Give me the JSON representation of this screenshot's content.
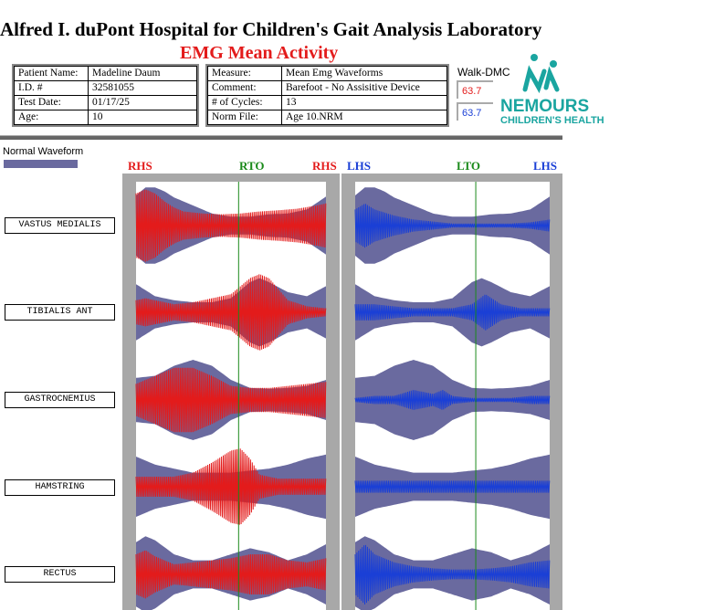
{
  "header": {
    "title": "Alfred I. duPont Hospital for Children's Gait Analysis Laboratory",
    "subtitle": "EMG Mean Activity"
  },
  "patient_info": [
    {
      "label": "Patient Name:",
      "value": "Madeline Daum"
    },
    {
      "label": "I.D. #",
      "value": "32581055"
    },
    {
      "label": "Test Date:",
      "value": "01/17/25"
    },
    {
      "label": "Age:",
      "value": "10"
    }
  ],
  "measure_info": [
    {
      "label": "Measure:",
      "value": "Mean Emg Waveforms"
    },
    {
      "label": "Comment:",
      "value": "Barefoot - No Assisitive Device"
    },
    {
      "label": "# of Cycles:",
      "value": "13"
    },
    {
      "label": "Norm File:",
      "value": "Age 10.NRM"
    }
  ],
  "walk_dmc": {
    "label": "Walk-DMC",
    "right_value": "63.7",
    "left_value": "63.7",
    "right_color": "#e31b1b",
    "left_color": "#1a3fd6"
  },
  "brand": {
    "name": "NEMOURS",
    "tagline": "CHILDREN'S HEALTH",
    "color": "#1aa5a0"
  },
  "legend": {
    "normal_waveform": "Normal Waveform",
    "normal_color": "#6a6a9f"
  },
  "events": {
    "right": [
      "RHS",
      "RTO",
      "RHS"
    ],
    "left": [
      "LHS",
      "LTO",
      "LHS"
    ],
    "right_color": "#e31b1b",
    "left_color": "#1a3fd6",
    "toe_off_color": "#1a8a1a"
  },
  "chart_data": {
    "type": "area",
    "x_range": [
      0,
      100
    ],
    "toe_off_percent": {
      "right": 54,
      "left": 62
    },
    "muscles": [
      {
        "name": "VASTUS MEDIALIS",
        "normal_envelope": [
          [
            0,
            0.75
          ],
          [
            5,
            0.95
          ],
          [
            10,
            0.95
          ],
          [
            15,
            0.85
          ],
          [
            20,
            0.7
          ],
          [
            30,
            0.5
          ],
          [
            40,
            0.3
          ],
          [
            50,
            0.22
          ],
          [
            60,
            0.22
          ],
          [
            70,
            0.28
          ],
          [
            80,
            0.3
          ],
          [
            90,
            0.4
          ],
          [
            100,
            0.72
          ]
        ],
        "right_activity": [
          [
            0,
            0.8
          ],
          [
            5,
            0.9
          ],
          [
            10,
            0.8
          ],
          [
            15,
            0.6
          ],
          [
            20,
            0.45
          ],
          [
            25,
            0.35
          ],
          [
            35,
            0.3
          ],
          [
            45,
            0.28
          ],
          [
            55,
            0.3
          ],
          [
            65,
            0.35
          ],
          [
            75,
            0.38
          ],
          [
            85,
            0.42
          ],
          [
            95,
            0.5
          ],
          [
            100,
            0.55
          ]
        ],
        "left_activity": [
          [
            0,
            0.4
          ],
          [
            5,
            0.55
          ],
          [
            10,
            0.4
          ],
          [
            20,
            0.25
          ],
          [
            30,
            0.15
          ],
          [
            40,
            0.1
          ],
          [
            50,
            0.05
          ],
          [
            60,
            0.05
          ],
          [
            70,
            0.05
          ],
          [
            80,
            0.05
          ],
          [
            90,
            0.08
          ],
          [
            100,
            0.15
          ]
        ]
      },
      {
        "name": "TIBIALIS ANT",
        "normal_envelope": [
          [
            0,
            0.7
          ],
          [
            5,
            0.55
          ],
          [
            10,
            0.4
          ],
          [
            20,
            0.3
          ],
          [
            30,
            0.25
          ],
          [
            40,
            0.25
          ],
          [
            50,
            0.35
          ],
          [
            60,
            0.75
          ],
          [
            65,
            0.85
          ],
          [
            70,
            0.75
          ],
          [
            80,
            0.5
          ],
          [
            90,
            0.4
          ],
          [
            100,
            0.65
          ]
        ],
        "right_activity": [
          [
            0,
            0.3
          ],
          [
            5,
            0.35
          ],
          [
            10,
            0.3
          ],
          [
            20,
            0.2
          ],
          [
            30,
            0.25
          ],
          [
            40,
            0.35
          ],
          [
            50,
            0.45
          ],
          [
            60,
            0.85
          ],
          [
            65,
            0.95
          ],
          [
            70,
            0.85
          ],
          [
            80,
            0.3
          ],
          [
            90,
            0.15
          ],
          [
            100,
            0.1
          ]
        ],
        "left_activity": [
          [
            0,
            0.2
          ],
          [
            10,
            0.2
          ],
          [
            20,
            0.15
          ],
          [
            30,
            0.1
          ],
          [
            40,
            0.1
          ],
          [
            50,
            0.1
          ],
          [
            60,
            0.2
          ],
          [
            67,
            0.45
          ],
          [
            75,
            0.2
          ],
          [
            85,
            0.1
          ],
          [
            100,
            0.1
          ]
        ]
      },
      {
        "name": "GASTROCNEMIUS",
        "normal_envelope": [
          [
            0,
            0.55
          ],
          [
            10,
            0.6
          ],
          [
            20,
            0.85
          ],
          [
            30,
            1.0
          ],
          [
            40,
            0.85
          ],
          [
            50,
            0.5
          ],
          [
            60,
            0.3
          ],
          [
            70,
            0.28
          ],
          [
            80,
            0.3
          ],
          [
            90,
            0.35
          ],
          [
            100,
            0.5
          ]
        ],
        "right_activity": [
          [
            0,
            0.4
          ],
          [
            10,
            0.6
          ],
          [
            20,
            0.8
          ],
          [
            30,
            0.8
          ],
          [
            40,
            0.6
          ],
          [
            50,
            0.35
          ],
          [
            60,
            0.3
          ],
          [
            70,
            0.3
          ],
          [
            80,
            0.35
          ],
          [
            90,
            0.4
          ],
          [
            100,
            0.45
          ]
        ],
        "left_activity": [
          [
            0,
            0.05
          ],
          [
            10,
            0.1
          ],
          [
            20,
            0.1
          ],
          [
            30,
            0.25
          ],
          [
            40,
            0.15
          ],
          [
            45,
            0.25
          ],
          [
            50,
            0.1
          ],
          [
            60,
            0.05
          ],
          [
            70,
            0.05
          ],
          [
            80,
            0.05
          ],
          [
            90,
            0.1
          ],
          [
            100,
            0.1
          ]
        ]
      },
      {
        "name": "HAMSTRING",
        "normal_envelope": [
          [
            0,
            0.75
          ],
          [
            10,
            0.55
          ],
          [
            20,
            0.45
          ],
          [
            30,
            0.35
          ],
          [
            40,
            0.35
          ],
          [
            50,
            0.35
          ],
          [
            60,
            0.4
          ],
          [
            70,
            0.45
          ],
          [
            80,
            0.55
          ],
          [
            90,
            0.7
          ],
          [
            100,
            0.8
          ]
        ],
        "right_activity": [
          [
            0,
            0.25
          ],
          [
            10,
            0.25
          ],
          [
            20,
            0.25
          ],
          [
            30,
            0.35
          ],
          [
            40,
            0.6
          ],
          [
            50,
            0.9
          ],
          [
            55,
            0.95
          ],
          [
            60,
            0.7
          ],
          [
            65,
            0.3
          ],
          [
            75,
            0.2
          ],
          [
            85,
            0.2
          ],
          [
            100,
            0.2
          ]
        ],
        "left_activity": [
          [
            0,
            0.15
          ],
          [
            10,
            0.15
          ],
          [
            20,
            0.15
          ],
          [
            30,
            0.15
          ],
          [
            40,
            0.15
          ],
          [
            50,
            0.15
          ],
          [
            60,
            0.15
          ],
          [
            70,
            0.15
          ],
          [
            80,
            0.15
          ],
          [
            90,
            0.15
          ],
          [
            100,
            0.15
          ]
        ]
      },
      {
        "name": "RECTUS",
        "normal_envelope": [
          [
            0,
            0.8
          ],
          [
            5,
            0.95
          ],
          [
            10,
            0.85
          ],
          [
            20,
            0.5
          ],
          [
            30,
            0.35
          ],
          [
            40,
            0.35
          ],
          [
            50,
            0.5
          ],
          [
            60,
            0.65
          ],
          [
            70,
            0.55
          ],
          [
            80,
            0.35
          ],
          [
            90,
            0.5
          ],
          [
            100,
            0.75
          ]
        ],
        "right_activity": [
          [
            0,
            0.5
          ],
          [
            5,
            0.6
          ],
          [
            10,
            0.45
          ],
          [
            20,
            0.25
          ],
          [
            30,
            0.3
          ],
          [
            40,
            0.35
          ],
          [
            50,
            0.4
          ],
          [
            60,
            0.5
          ],
          [
            70,
            0.5
          ],
          [
            80,
            0.35
          ],
          [
            90,
            0.3
          ],
          [
            100,
            0.4
          ]
        ],
        "left_activity": [
          [
            0,
            0.5
          ],
          [
            5,
            0.75
          ],
          [
            10,
            0.5
          ],
          [
            20,
            0.3
          ],
          [
            30,
            0.2
          ],
          [
            40,
            0.15
          ],
          [
            50,
            0.12
          ],
          [
            60,
            0.12
          ],
          [
            70,
            0.15
          ],
          [
            80,
            0.2
          ],
          [
            90,
            0.3
          ],
          [
            100,
            0.35
          ]
        ]
      }
    ]
  }
}
